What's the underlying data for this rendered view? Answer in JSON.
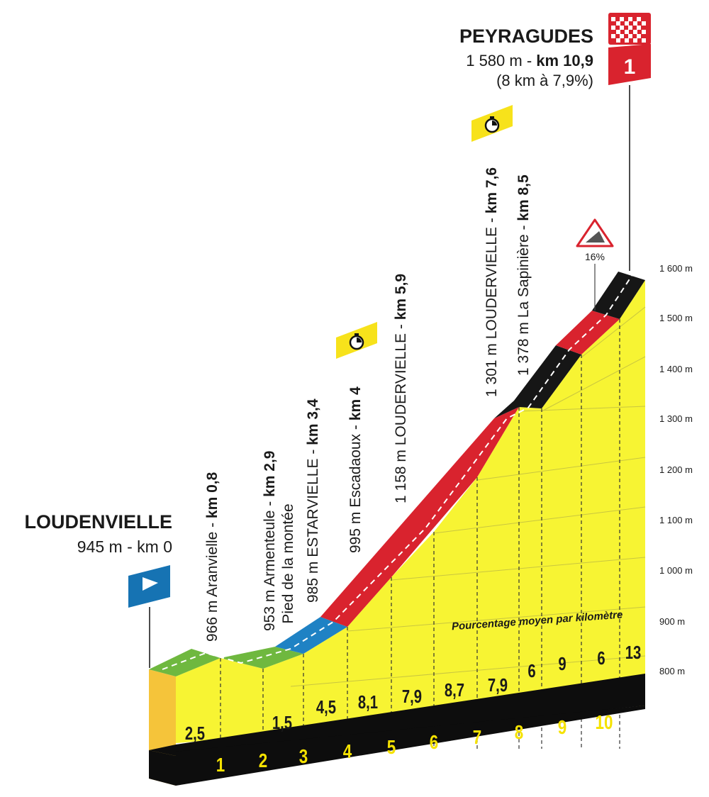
{
  "start": {
    "name": "LOUDENVIELLE",
    "detail": "945 m - km 0"
  },
  "finish": {
    "name": "PEYRAGUDES",
    "detail_plain": "1 580 m - ",
    "detail_bold": "km 10,9",
    "climb": "(8 km à 7,9%)",
    "category": "1"
  },
  "steep_sign": {
    "label": "16%"
  },
  "axis": {
    "unit": "m",
    "ticks": [
      "1 600 m",
      "1 500 m",
      "1 400 m",
      "1 300 m",
      "1 200 m",
      "1 100 m",
      "1 000 m",
      "900 m",
      "800 m"
    ],
    "km_labels": [
      "1",
      "2",
      "3",
      "4",
      "5",
      "6",
      "7",
      "8",
      "9",
      "10"
    ]
  },
  "gradients": [
    "2,5",
    "1,5",
    "4,5",
    "8,1",
    "7,9",
    "8,7",
    "7,9",
    "6",
    "9",
    "6",
    "13"
  ],
  "caption": "Pourcentage moyen par kilomètre",
  "waypoints": [
    {
      "plain": "966 m Aranvielle - ",
      "bold": "km 0,8",
      "sub": ""
    },
    {
      "plain": "953 m Armenteule - ",
      "bold": "km 2,9",
      "sub": "Pied de la montée"
    },
    {
      "plain": "985 m ESTARVIELLE - ",
      "bold": "km 3,4",
      "sub": ""
    },
    {
      "plain": "995 m Escadaoux - ",
      "bold": "km 4",
      "sub": ""
    },
    {
      "plain": "1 158 m LOUDERVIELLE - ",
      "bold": "km 5,9",
      "sub": ""
    },
    {
      "plain": "1 301 m LOUDERVIELLE - ",
      "bold": "km 7,6",
      "sub": ""
    },
    {
      "plain": "1 378 m La Sapinière - ",
      "bold": "km 8,5",
      "sub": ""
    }
  ],
  "colors": {
    "profile_fill": "#f7f433",
    "profile_front": "#f5c43a",
    "band_green": "#6fb83f",
    "band_blue": "#1f82c4",
    "band_red": "#d9232e",
    "band_black": "#161616",
    "base": "#0d0d0d",
    "km_number": "#f5e200",
    "start_flag": "#1673b3",
    "finish_red": "#d9232e",
    "stopwatch": "#f7e21b"
  },
  "icons": [
    "start-flag-icon",
    "finish-checkered-flag-icon",
    "stopwatch-icon",
    "steep-gradient-warning-icon"
  ]
}
